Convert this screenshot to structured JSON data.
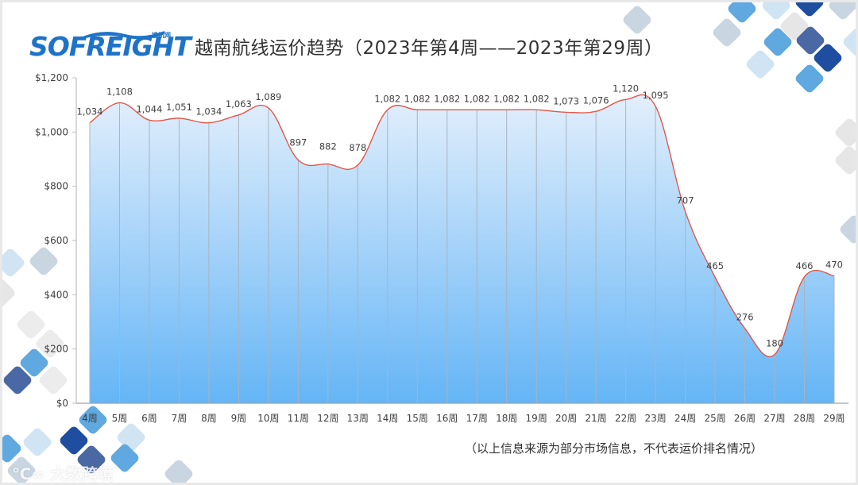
{
  "header": {
    "logo_text": "SOFREIGHT",
    "logo_sub": "搜航网",
    "title": "越南航线运价趋势（2023年第4周——2023年第29周）"
  },
  "footer": {
    "note": "（以上信息来源为部分市场信息，不代表运价排名情况）",
    "watermark": "大数跨境"
  },
  "colors": {
    "line": "#e0584a",
    "area_top": "#e3effc",
    "area_bottom": "#64b5f6",
    "axis": "#bfbfbf",
    "text": "#404040"
  },
  "chart_data": {
    "type": "area",
    "title": "越南航线运价趋势（2023年第4周——2023年第29周）",
    "xlabel": "",
    "ylabel": "",
    "categories": [
      "4周",
      "5周",
      "6周",
      "7周",
      "8周",
      "9周",
      "10周",
      "11周",
      "12周",
      "13周",
      "14周",
      "15周",
      "16周",
      "17周",
      "18周",
      "19周",
      "20周",
      "21周",
      "22周",
      "23周",
      "24周",
      "25周",
      "26周",
      "27周",
      "28周",
      "29周"
    ],
    "values": [
      1034,
      1108,
      1044,
      1051,
      1034,
      1063,
      1089,
      897,
      882,
      878,
      1082,
      1082,
      1082,
      1082,
      1082,
      1082,
      1073,
      1076,
      1120,
      1095,
      707,
      465,
      276,
      180,
      466,
      470
    ],
    "data_labels": [
      "1,034",
      "1,108",
      "1,044",
      "1,051",
      "1,034",
      "1,063",
      "1,089",
      "897",
      "882",
      "878",
      "1,082",
      "1,082",
      "1,082",
      "1,082",
      "1,082",
      "1,082",
      "1,073",
      "1,076",
      "1,120",
      "1,095",
      "707",
      "465",
      "276",
      "180",
      "466",
      "470"
    ],
    "y_ticks": [
      "$0",
      "$200",
      "$400",
      "$600",
      "$800",
      "$1,000",
      "$1,200"
    ],
    "y_tick_values": [
      0,
      200,
      400,
      600,
      800,
      1000,
      1200
    ],
    "ylim": [
      0,
      1200
    ],
    "grid": false,
    "smooth": true,
    "legend": null
  }
}
